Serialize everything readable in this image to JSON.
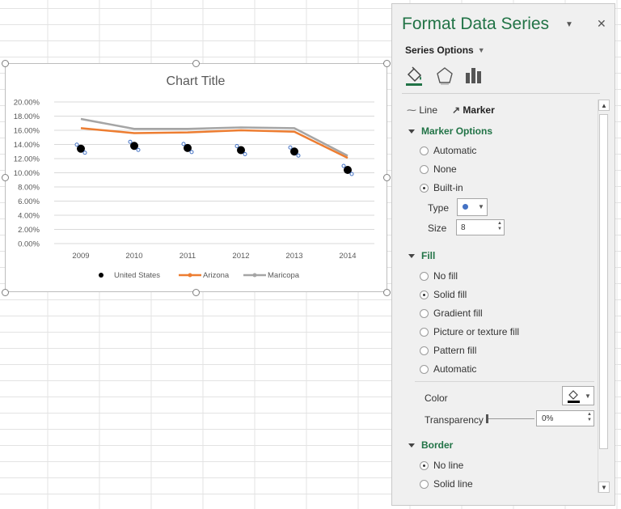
{
  "panel": {
    "title": "Format Data Series",
    "series_options_label": "Series Options",
    "tab_line": "Line",
    "tab_marker": "Marker",
    "marker_options": {
      "heading": "Marker Options",
      "automatic": "Automatic",
      "none": "None",
      "builtin": "Built-in",
      "type_label": "Type",
      "size_label": "Size",
      "size_value": "8"
    },
    "fill": {
      "heading": "Fill",
      "no_fill": "No fill",
      "solid_fill": "Solid fill",
      "gradient_fill": "Gradient fill",
      "picture_fill": "Picture or texture fill",
      "pattern_fill": "Pattern fill",
      "automatic": "Automatic",
      "color_label": "Color",
      "transparency_label": "Transparency",
      "transparency_value": "0%"
    },
    "border": {
      "heading": "Border",
      "no_line": "No line",
      "solid_line": "Solid line"
    },
    "accent_color": "#217346"
  },
  "chart_data": {
    "type": "line",
    "title": "Chart Title",
    "categories": [
      "2009",
      "2010",
      "2011",
      "2012",
      "2013",
      "2014"
    ],
    "ylim": [
      0,
      0.2
    ],
    "yticks": [
      "0.00%",
      "2.00%",
      "4.00%",
      "6.00%",
      "8.00%",
      "10.00%",
      "12.00%",
      "14.00%",
      "16.00%",
      "18.00%",
      "20.00%"
    ],
    "grid": true,
    "legend_position": "bottom",
    "series": [
      {
        "name": "United States",
        "style": "markers",
        "color": "#000000",
        "values": [
          0.134,
          0.138,
          0.135,
          0.132,
          0.13,
          0.104
        ]
      },
      {
        "name": "Arizona",
        "style": "line",
        "color": "#ED7D31",
        "values": [
          0.163,
          0.156,
          0.157,
          0.16,
          0.158,
          0.121
        ]
      },
      {
        "name": "Maricopa",
        "style": "line",
        "color": "#A5A5A5",
        "values": [
          0.176,
          0.162,
          0.162,
          0.164,
          0.163,
          0.124
        ]
      }
    ]
  }
}
